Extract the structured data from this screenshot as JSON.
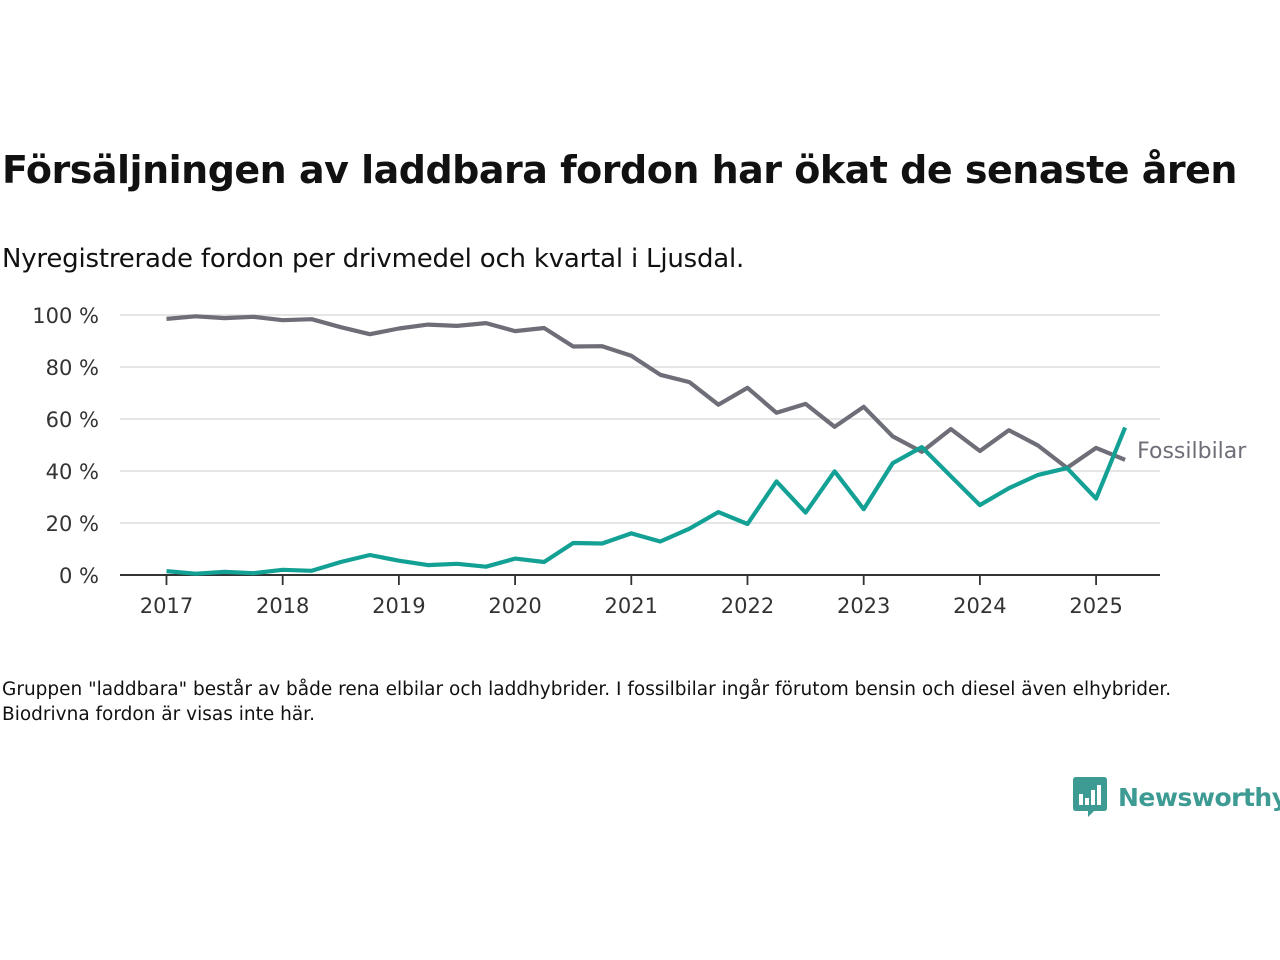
{
  "title": "Försäljningen av laddbara fordon har ökat de senaste åren",
  "subtitle": "Nyregistrerade fordon per drivmedel och kvartal i Ljusdal.",
  "note": "Gruppen \"laddbara\" består av både rena elbilar och laddhybrider. I fossilbilar ingår förutom bensin och diesel även elhybrider. Biodrivna fordon är visas inte här.",
  "brand": {
    "name": "Newsworthy",
    "color": "#3d9b94"
  },
  "chart_data": {
    "type": "line",
    "x": [
      2017.0,
      2017.25,
      2017.5,
      2017.75,
      2018.0,
      2018.25,
      2018.5,
      2018.75,
      2019.0,
      2019.25,
      2019.5,
      2019.75,
      2020.0,
      2020.25,
      2020.5,
      2020.75,
      2021.0,
      2021.25,
      2021.5,
      2021.75,
      2022.0,
      2022.25,
      2022.5,
      2022.75,
      2023.0,
      2023.25,
      2023.5,
      2023.75,
      2024.0,
      2024.25,
      2024.5,
      2024.75,
      2025.0,
      2025.25
    ],
    "x_ticks": [
      2017,
      2018,
      2019,
      2020,
      2021,
      2022,
      2023,
      2024,
      2025
    ],
    "x_tick_labels": [
      "2017",
      "2018",
      "2019",
      "2020",
      "2021",
      "2022",
      "2023",
      "2024",
      "2025"
    ],
    "xlim": [
      2016.6,
      2025.55
    ],
    "y_ticks": [
      0,
      20,
      40,
      60,
      80,
      100
    ],
    "y_tick_labels": [
      "0 %",
      "20 %",
      "40 %",
      "60 %",
      "80 %",
      "100 %"
    ],
    "ylim": [
      0,
      100
    ],
    "grid": true,
    "series": [
      {
        "name": "Fossilbilar",
        "color": "#6e6e78",
        "values": [
          98.5,
          99.5,
          98.8,
          99.3,
          98.0,
          98.4,
          95.3,
          92.6,
          94.8,
          96.3,
          95.8,
          96.9,
          93.8,
          95.0,
          87.9,
          88.0,
          84.3,
          77.0,
          74.2,
          65.5,
          72.0,
          62.4,
          65.8,
          57.0,
          64.7,
          53.3,
          47.4,
          56.1,
          47.7,
          55.7,
          49.8,
          41.2,
          48.9,
          44.3
        ],
        "label_shown": true
      },
      {
        "name": "",
        "color": "#14a195",
        "values": [
          1.5,
          0.5,
          1.2,
          0.7,
          2.0,
          1.6,
          5.0,
          7.7,
          5.5,
          3.8,
          4.3,
          3.2,
          6.3,
          5.0,
          12.3,
          12.1,
          16.0,
          12.9,
          17.8,
          24.2,
          19.6,
          36.0,
          24.0,
          39.9,
          25.3,
          43.0,
          49.2,
          38.0,
          26.9,
          33.4,
          38.5,
          41.1,
          29.4,
          56.7
        ],
        "label_shown": false
      }
    ]
  }
}
